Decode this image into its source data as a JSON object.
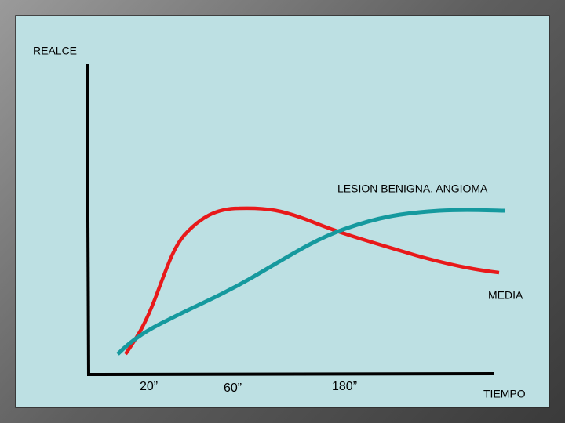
{
  "y_axis_label": "REALCE",
  "x_axis_label": "TIEMPO",
  "curves": [
    {
      "label": "LESION BENIGNA. ANGIOMA"
    },
    {
      "label": "MEDIA"
    }
  ],
  "x_marks": [
    "20”",
    "60”",
    "180”"
  ]
}
